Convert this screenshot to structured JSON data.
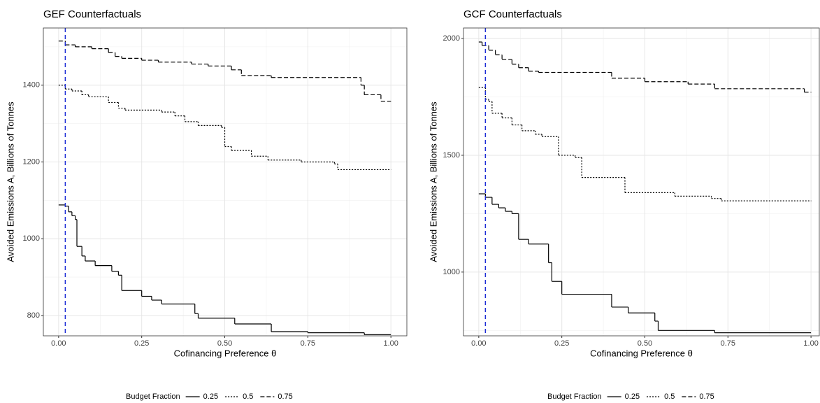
{
  "chart_data": [
    {
      "type": "line",
      "title": "GEF Counterfactuals",
      "x_label": "Cofinancing Preference θ",
      "y_label": "Avoided Emissions A, Billions of Tonnes",
      "xlim": [
        -0.046,
        1.048
      ],
      "ylim": [
        747,
        1549
      ],
      "xticks": [
        {
          "value": 0,
          "label": "0.00"
        },
        {
          "value": 0.25,
          "label": "0.25"
        },
        {
          "value": 0.5,
          "label": "0.50"
        },
        {
          "value": 0.75,
          "label": "0.75"
        },
        {
          "value": 1,
          "label": "1.00"
        }
      ],
      "yticks": [
        800,
        1000,
        1200,
        1400
      ],
      "grid": true,
      "vline": 0.02,
      "vline_color": "#1f2fd6",
      "legend_title": "Budget Fraction",
      "series": [
        {
          "name": "0.25",
          "color": "#000000",
          "linetype": "solid",
          "x": [
            0,
            0.02,
            0.03,
            0.04,
            0.05,
            0.055,
            0.07,
            0.08,
            0.11,
            0.16,
            0.18,
            0.19,
            0.25,
            0.28,
            0.31,
            0.41,
            0.42,
            0.53,
            0.64,
            0.75,
            0.92,
            1.0
          ],
          "values": [
            1088,
            1085,
            1070,
            1060,
            1050,
            980,
            955,
            942,
            930,
            915,
            905,
            865,
            850,
            840,
            830,
            805,
            793,
            778,
            758,
            755,
            750,
            750
          ]
        },
        {
          "name": "0.5",
          "color": "#000000",
          "linetype": "dotted",
          "x": [
            0,
            0.02,
            0.04,
            0.07,
            0.09,
            0.15,
            0.18,
            0.2,
            0.31,
            0.35,
            0.38,
            0.42,
            0.49,
            0.5,
            0.52,
            0.58,
            0.63,
            0.73,
            0.83,
            0.84,
            1.0
          ],
          "values": [
            1400,
            1390,
            1385,
            1375,
            1370,
            1355,
            1340,
            1335,
            1330,
            1320,
            1305,
            1295,
            1290,
            1240,
            1230,
            1215,
            1205,
            1200,
            1195,
            1180,
            1180
          ]
        },
        {
          "name": "0.75",
          "color": "#000000",
          "linetype": "dashed",
          "x": [
            0,
            0.02,
            0.05,
            0.1,
            0.15,
            0.17,
            0.19,
            0.25,
            0.3,
            0.4,
            0.45,
            0.52,
            0.55,
            0.64,
            0.91,
            0.92,
            0.97,
            1.0
          ],
          "values": [
            1515,
            1505,
            1500,
            1495,
            1485,
            1475,
            1470,
            1465,
            1460,
            1455,
            1450,
            1440,
            1425,
            1420,
            1400,
            1375,
            1358,
            1358
          ]
        }
      ]
    },
    {
      "type": "line",
      "title": "GCF Counterfactuals",
      "x_label": "Cofinancing Preference θ",
      "y_label": "Avoided Emissions A, Billions of Tonnes",
      "xlim": [
        -0.046,
        1.025
      ],
      "ylim": [
        727,
        2045
      ],
      "xticks": [
        {
          "value": 0,
          "label": "0.00"
        },
        {
          "value": 0.25,
          "label": "0.25"
        },
        {
          "value": 0.5,
          "label": "0.50"
        },
        {
          "value": 0.75,
          "label": "0.75"
        },
        {
          "value": 1,
          "label": "1.00"
        }
      ],
      "yticks": [
        1000,
        1500,
        2000
      ],
      "grid": true,
      "vline": 0.02,
      "vline_color": "#1f2fd6",
      "legend_title": "Budget Fraction",
      "series": [
        {
          "name": "0.25",
          "color": "#000000",
          "linetype": "solid",
          "x": [
            0,
            0.02,
            0.04,
            0.06,
            0.08,
            0.1,
            0.12,
            0.15,
            0.21,
            0.22,
            0.25,
            0.4,
            0.45,
            0.53,
            0.54,
            0.71,
            1.0
          ],
          "values": [
            1335,
            1320,
            1290,
            1275,
            1260,
            1250,
            1140,
            1120,
            1040,
            960,
            905,
            850,
            825,
            790,
            750,
            740,
            740
          ]
        },
        {
          "name": "0.5",
          "color": "#000000",
          "linetype": "dotted",
          "x": [
            0,
            0.02,
            0.03,
            0.04,
            0.07,
            0.1,
            0.13,
            0.17,
            0.19,
            0.24,
            0.29,
            0.31,
            0.44,
            0.59,
            0.7,
            0.73,
            1.0
          ],
          "values": [
            1790,
            1740,
            1730,
            1680,
            1660,
            1630,
            1605,
            1590,
            1580,
            1500,
            1490,
            1405,
            1340,
            1325,
            1315,
            1305,
            1305
          ]
        },
        {
          "name": "0.75",
          "color": "#000000",
          "linetype": "dashed",
          "x": [
            0,
            0.01,
            0.03,
            0.05,
            0.07,
            0.1,
            0.12,
            0.15,
            0.18,
            0.4,
            0.5,
            0.63,
            0.71,
            0.98,
            1.0
          ],
          "values": [
            1985,
            1970,
            1950,
            1930,
            1910,
            1890,
            1875,
            1860,
            1855,
            1830,
            1815,
            1805,
            1785,
            1770,
            1770
          ]
        }
      ]
    }
  ]
}
